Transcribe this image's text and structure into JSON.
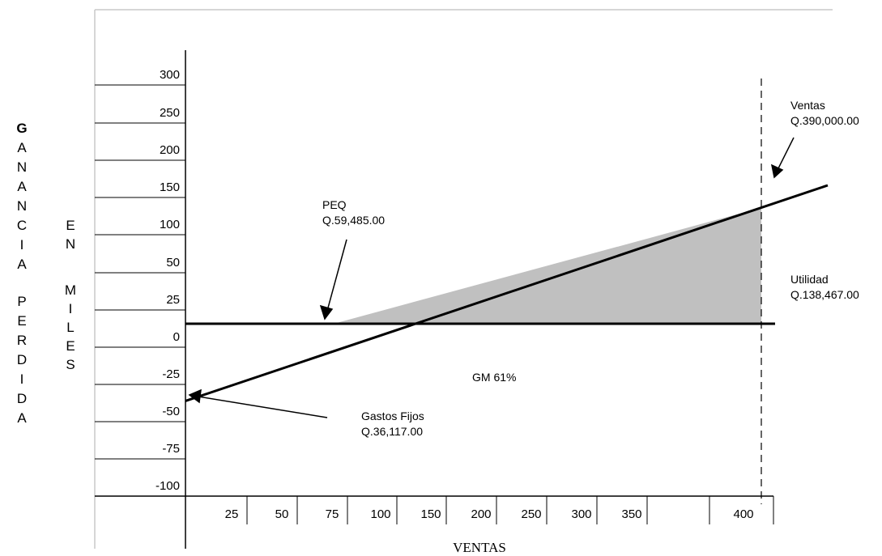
{
  "chart_data": {
    "type": "line",
    "title": "",
    "xlabel": "VENTAS",
    "ylabel_left": [
      "G",
      "A",
      "N",
      "A",
      "N",
      "C",
      "I",
      "A",
      "",
      "P",
      "E",
      "R",
      "D",
      "I",
      "D",
      "A"
    ],
    "ylabel_right": [
      "E",
      "N",
      "",
      "M",
      "I",
      "L",
      "E",
      "S"
    ],
    "y_ticks": [
      "300",
      "250",
      "200",
      "150",
      "100",
      "50",
      "25",
      "0",
      "-25",
      "-50",
      "-75",
      "-100"
    ],
    "x_ticks": [
      "25",
      "50",
      "75",
      "100",
      "150",
      "200",
      "250",
      "300",
      "350",
      "400"
    ],
    "series": [
      {
        "x": [
          "0",
          "59.485",
          "390",
          "400"
        ],
        "y": [
          -36.117,
          0,
          138.467,
          142.5
        ]
      }
    ],
    "shaded_region": {
      "from_x": "59.485",
      "to_x": "390",
      "color": "#c0c0c0"
    },
    "reference_line": {
      "x": "390",
      "style": "dashed"
    },
    "grid": false,
    "annotations": {
      "peq": {
        "label": "PEQ",
        "value": "Q.59,485.00"
      },
      "ventas": {
        "label": "Ventas",
        "value": "Q.390,000.00"
      },
      "utilidad": {
        "label": "Utilidad",
        "value": "Q.138,467.00"
      },
      "gastos": {
        "label": "Gastos Fijos",
        "value": "Q.36,117.00"
      },
      "gm": {
        "label": "GM 61%"
      }
    }
  },
  "colors": {
    "line": "#000000",
    "shade": "#c0c0c0",
    "frame": "#c8c8c8"
  }
}
